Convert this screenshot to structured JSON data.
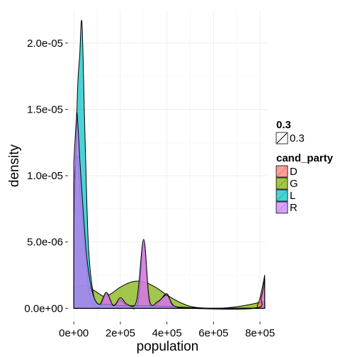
{
  "chart_data": {
    "type": "area",
    "xlabel": "population",
    "ylabel": "density",
    "xlim": [
      -25000,
      830000
    ],
    "ylim": [
      -1e-06,
      2.25e-05
    ],
    "grid": true,
    "legend_position": "right",
    "x_ticks": [
      0,
      200000,
      400000,
      600000,
      800000
    ],
    "x_tick_labels": [
      "0e+00",
      "2e+05",
      "4e+05",
      "6e+05",
      "8e+05"
    ],
    "y_ticks": [
      0,
      5e-06,
      1e-05,
      1.5e-05,
      2e-05
    ],
    "y_tick_labels": [
      "0.0e+00",
      "5.0e-06",
      "1.0e-05",
      "1.5e-05",
      "2.0e-05"
    ],
    "legend": [
      {
        "title": "0.3",
        "items": [
          {
            "label": "0.3",
            "kind": "line-key"
          }
        ]
      },
      {
        "title": "cand_party",
        "items": [
          {
            "label": "D",
            "color": "#f8766d"
          },
          {
            "label": "G",
            "color": "#7cae00"
          },
          {
            "label": "L",
            "color": "#00bfc4"
          },
          {
            "label": "R",
            "color": "#c77cff"
          }
        ]
      }
    ],
    "fill_opacity": 0.7,
    "series": [
      {
        "name": "G",
        "color": "#7cae00",
        "points": [
          [
            0,
            1.6e-06
          ],
          [
            50000,
            1.7e-06
          ],
          [
            100000,
            1.2e-06
          ],
          [
            130000,
            9e-07
          ],
          [
            160000,
            1.1e-06
          ],
          [
            200000,
            1.6e-06
          ],
          [
            250000,
            2e-06
          ],
          [
            300000,
            2e-06
          ],
          [
            350000,
            1.6e-06
          ],
          [
            400000,
            1e-06
          ],
          [
            450000,
            5e-07
          ],
          [
            500000,
            1.5e-07
          ],
          [
            560000,
            2e-08
          ],
          [
            640000,
            2e-08
          ],
          [
            700000,
            1.2e-07
          ],
          [
            760000,
            3e-07
          ],
          [
            800000,
            4.5e-07
          ],
          [
            820000,
            5e-07
          ]
        ]
      },
      {
        "name": "D",
        "color": "#f8766d",
        "points": [
          [
            0,
            9.5e-06
          ],
          [
            15000,
            1.15e-05
          ],
          [
            30000,
            8e-06
          ],
          [
            55000,
            3e-06
          ],
          [
            75000,
            6e-07
          ],
          [
            110000,
            1e-07
          ],
          [
            140000,
            1.1e-06
          ],
          [
            170000,
            2e-07
          ],
          [
            200000,
            6e-07
          ],
          [
            230000,
            2e-07
          ],
          [
            275000,
            4e-07
          ],
          [
            300000,
            5.2e-06
          ],
          [
            325000,
            4e-07
          ],
          [
            360000,
            4e-07
          ],
          [
            400000,
            1.1e-06
          ],
          [
            430000,
            1e-07
          ],
          [
            520000,
            0.0
          ],
          [
            760000,
            0.0
          ],
          [
            790000,
            3e-07
          ],
          [
            805000,
            1.2e-06
          ],
          [
            820000,
            2.5e-06
          ]
        ]
      },
      {
        "name": "L",
        "color": "#00bfc4",
        "points": [
          [
            0,
            6e-06
          ],
          [
            15000,
            1.6e-05
          ],
          [
            25000,
            1.9e-05
          ],
          [
            35000,
            2.15e-05
          ],
          [
            48000,
            1.3e-05
          ],
          [
            62000,
            5e-06
          ],
          [
            80000,
            1.5e-06
          ],
          [
            100000,
            4e-07
          ],
          [
            140000,
            3e-07
          ],
          [
            200000,
            2e-07
          ],
          [
            300000,
            2e-07
          ],
          [
            400000,
            1.5e-07
          ],
          [
            500000,
            5e-08
          ],
          [
            600000,
            0.0
          ],
          [
            820000,
            0.0
          ]
        ]
      },
      {
        "name": "R",
        "color": "#c77cff",
        "points": [
          [
            0,
            1.1e-05
          ],
          [
            10000,
            1.4e-05
          ],
          [
            15000,
            1.45e-05
          ],
          [
            30000,
            1e-05
          ],
          [
            55000,
            4e-06
          ],
          [
            80000,
            1.2e-06
          ],
          [
            110000,
            3e-07
          ],
          [
            140000,
            1.2e-06
          ],
          [
            170000,
            2e-07
          ],
          [
            200000,
            8e-07
          ],
          [
            230000,
            3e-07
          ],
          [
            270000,
            6e-07
          ],
          [
            300000,
            5.2e-06
          ],
          [
            325000,
            6e-07
          ],
          [
            360000,
            5e-07
          ],
          [
            400000,
            1e-06
          ],
          [
            430000,
            2e-07
          ],
          [
            500000,
            0.0
          ],
          [
            780000,
            0.0
          ],
          [
            805000,
            8e-07
          ],
          [
            820000,
            2.2e-06
          ]
        ]
      }
    ]
  }
}
